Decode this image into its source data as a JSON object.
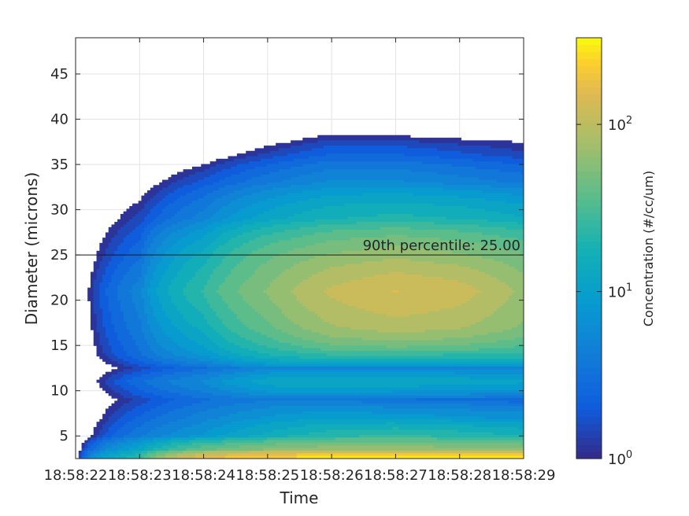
{
  "chart_data": {
    "type": "heatmap",
    "subtype": "filled-contour",
    "xlabel": "Time",
    "ylabel": "Diameter (microns)",
    "x_ticks": [
      "18:58:22",
      "18:58:23",
      "18:58:24",
      "18:58:25",
      "18:58:26",
      "18:58:27",
      "18:58:28",
      "18:58:29"
    ],
    "x_ticks_seconds_past_minute": [
      22,
      23,
      24,
      25,
      26,
      27,
      28,
      29
    ],
    "xlim_seconds_past_minute": [
      22,
      29
    ],
    "y_ticks": [
      5,
      10,
      15,
      20,
      25,
      30,
      35,
      40,
      45
    ],
    "ylim": [
      2.5,
      49
    ],
    "grid": true,
    "colorbar": {
      "label": "Concentration (#/cc/um)",
      "scale": "log",
      "range": [
        1,
        330
      ],
      "ticks": [
        {
          "base": "10",
          "exp": "0",
          "value": 1
        },
        {
          "base": "10",
          "exp": "1",
          "value": 10
        },
        {
          "base": "10",
          "exp": "2",
          "value": 100
        }
      ],
      "colormap": "parula"
    },
    "annotation": {
      "text": "90th percentile: 25.00",
      "y": 25
    },
    "times": [
      22,
      23,
      24,
      25,
      26,
      27,
      28,
      29
    ],
    "diameters": [
      2.5,
      3.5,
      5,
      7,
      9,
      11,
      12.5,
      14,
      17,
      21,
      25,
      29,
      33,
      36,
      38,
      40
    ],
    "concentration": [
      [
        0,
        25,
        180,
        260,
        300,
        310,
        300,
        290
      ],
      [
        0,
        12,
        40,
        60,
        70,
        70,
        65,
        60
      ],
      [
        0,
        4,
        8,
        15,
        22,
        25,
        22,
        18
      ],
      [
        0,
        2.5,
        5,
        8,
        10,
        9,
        8,
        7
      ],
      [
        0,
        1.5,
        3,
        4,
        4,
        3,
        3,
        2.5
      ],
      [
        0,
        3,
        6,
        12,
        14,
        13,
        12,
        11
      ],
      [
        0,
        1.5,
        3,
        5,
        5,
        5,
        5,
        5
      ],
      [
        0,
        3,
        8,
        18,
        25,
        26,
        24,
        22
      ],
      [
        0,
        4,
        15,
        40,
        75,
        90,
        80,
        55
      ],
      [
        0,
        5,
        25,
        60,
        110,
        140,
        120,
        70
      ],
      [
        0,
        3,
        15,
        40,
        60,
        70,
        60,
        45
      ],
      [
        0,
        1.5,
        5,
        12,
        18,
        20,
        18,
        14
      ],
      [
        0,
        0.5,
        2,
        4,
        6,
        6,
        5,
        4
      ],
      [
        0,
        0,
        0.5,
        1.5,
        2.5,
        2.5,
        2,
        1.5
      ],
      [
        0,
        0,
        0,
        0.5,
        1.2,
        1.1,
        0.9,
        0.8
      ],
      [
        0,
        0,
        0,
        0,
        0,
        0,
        0,
        0
      ]
    ]
  }
}
